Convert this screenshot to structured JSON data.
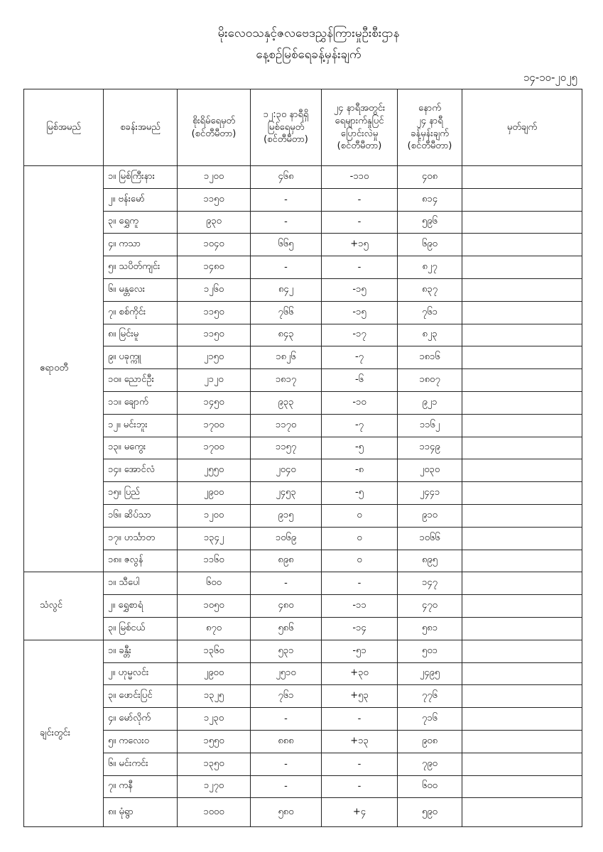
{
  "title_line1": "မိုးလေဝသနှင့်ဇလဗေဒညွှန်ကြားမှုဦးစီးဌာန",
  "title_line2": "နေ့စဉ်မြစ်ရေခန့်မှန်းချက်",
  "date": "၁၄-၁၀-၂၀၂၅",
  "headers": {
    "river": "မြစ်အမည်",
    "station": "စခန်းအမည်",
    "danger": "စိုးရိမ်ရေမှတ်\n(စင်တီမီတာ)",
    "current": "၁၂:၃၀ နာရီရှိ\nမြစ်ရေမှတ်\n(စင်တီမီတာ)",
    "change": "၂၄ နာရီအတွင်း\nရေများက်နှုပြင်\nပြောင်းလဲမှု\n(စင်တီမီတာ)",
    "forecast": "နောက်\n၂၄ နာရီ\nခန့်မှန်းချက်\n(စင်တီမီတာ)",
    "remarks": "မှတ်ချက်"
  },
  "rivers": [
    {
      "name": "ဧရာဝတီ",
      "stations": [
        [
          "၁။ မြစ်ကြီးနား",
          "၁၂၀၀",
          "၄၆၈",
          "-၁၁၀",
          "၄၀၈"
        ],
        [
          "၂။ ဗန်းမော်",
          "၁၁၅၀",
          "-",
          "-",
          "၈၁၄"
        ],
        [
          "၃။ ရွှေကူ",
          "၉၃၀",
          "-",
          "-",
          "၅၉၆"
        ],
        [
          "၄။ ကသာ",
          "၁၀၄၀",
          "၆၆၅",
          "+၁၅",
          "၆၉၀"
        ],
        [
          "၅။ သပိတ်ကျင်း",
          "၁၄၈၀",
          "-",
          "-",
          "၈၂၇"
        ],
        [
          "၆။ မန္တလေး",
          "၁၂၆၀",
          "၈၄၂",
          "-၁၅",
          "၈၃၇"
        ],
        [
          "၇။ စစ်ကိုင်း",
          "၁၁၅၀",
          "၇၆၆",
          "-၁၅",
          "၇၆၁"
        ],
        [
          "၈။ မြင်းမူ",
          "၁၁၅၀",
          "၈၄၃",
          "-၁၇",
          "၈၂၃"
        ],
        [
          "၉။ ပခုက္ကူ",
          "၂၁၅၀",
          "၁၈၂၆",
          "-၇",
          "၁၈၁၆"
        ],
        [
          "၁၀။ ညောင်ဦး",
          "၂၁၂၀",
          "၁၈၁၇",
          "-၆",
          "၁၈၀၇"
        ],
        [
          "၁၁။ ချောက်",
          "၁၄၅၀",
          "၉၃၃",
          "-၁၀",
          "၉၂၁"
        ],
        [
          "၁၂။ မင်းဘူး",
          "၁၇၀၀",
          "၁၁၇၀",
          "-၇",
          "၁၁၆၂"
        ],
        [
          "၁၃။ မကွေး",
          "၁၇၀၀",
          "၁၁၅၇",
          "-၅",
          "၁၁၄၉"
        ],
        [
          "၁၄။ အောင်လံ",
          "၂၅၅၀",
          "၂၀၄၀",
          "-၈",
          "၂၀၃၀"
        ],
        [
          "၁၅။ ပြည်",
          "၂၉၀၀",
          "၂၄၅၃",
          "-၅",
          "၂၄၄၁"
        ],
        [
          "၁၆။ ဆိပ်သာ",
          "၁၂၀၀",
          "၉၁၅",
          "၀",
          "၉၁၀"
        ],
        [
          "၁၇။ ဟင်္သာတ",
          "၁၃၄၂",
          "၁၀၆၉",
          "၀",
          "၁၀၆၆"
        ],
        [
          "၁၈။ ဇလွန်",
          "၁၁၆၀",
          "၈၉၈",
          "၀",
          "၈၉၅"
        ]
      ]
    },
    {
      "name": "သံလွင်",
      "stations": [
        [
          "၁။ သီပေါ",
          "၆၀၀",
          "-",
          "-",
          "၁၄၇"
        ],
        [
          "၂။ ရွှေစာရံ",
          "၁၀၅၀",
          "၄၈၀",
          "-၁၁",
          "၄၇၀"
        ],
        [
          "၃။ မြစ်ငယ်",
          "၈၇၀",
          "၅၈၆",
          "-၁၄",
          "၅၈၁"
        ]
      ]
    },
    {
      "name": "ချင်းတွင်း",
      "stations": [
        [
          "၁။ ခန္တီး",
          "၁၃၆၀",
          "၅၃၁",
          "-၅၁",
          "၅၀၁"
        ],
        [
          "၂။ ဟုမ္မလင်း",
          "၂၉၀၀",
          "၂၅၁၀",
          "+၃၀",
          "၂၄၉၅"
        ],
        [
          "၃။ ဖောင်းပြင်",
          "၁၃၂၅",
          "၇၆၁",
          "+၅၃",
          "၇၇၆"
        ],
        [
          "၄။ မော်လိုက်",
          "၁၂၃၀",
          "-",
          "-",
          "၇၁၆"
        ],
        [
          "၅။ ကလေးဝ",
          "၁၅၅၀",
          "၈၈၈",
          "+၁၃",
          "၉၀၈"
        ],
        [
          "၆။ မင်းကင်း",
          "၁၃၅၀",
          "-",
          "-",
          "၇၉၀"
        ],
        [
          "၇။ ကနီ",
          "၁၂၇၀",
          "-",
          "-",
          "၆၀၀"
        ],
        [
          "၈။ မုံရွာ",
          "၁၀၀၀",
          "၅၈၀",
          "+၄",
          "၅၉၀"
        ]
      ]
    }
  ]
}
